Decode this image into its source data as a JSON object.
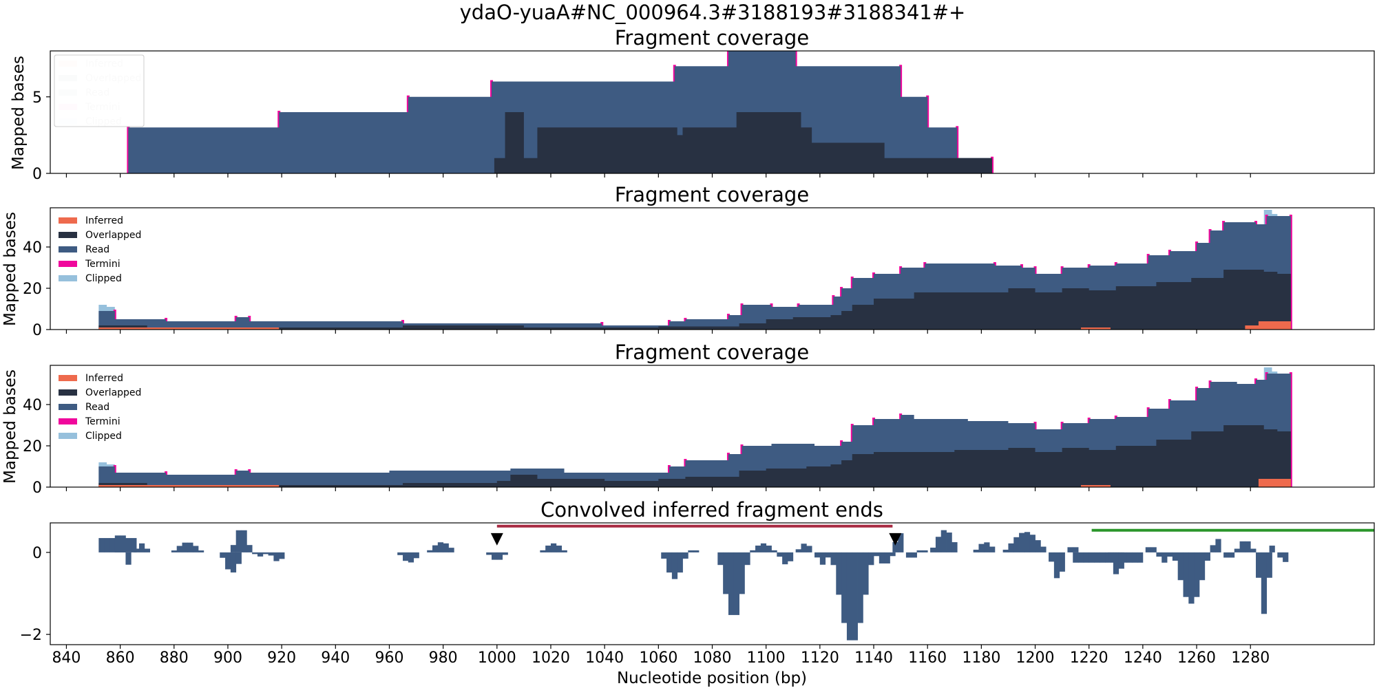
{
  "suptitle": "ydaO-yuaA#NC_000964.3#3188193#3188341#+",
  "colors": {
    "inferred": "#ee6a4d",
    "overlapped": "#283142",
    "read": "#3e5b82",
    "termini": "#f0079c",
    "clipped": "#96c0dc",
    "conv": "#3e5b82",
    "red_bar": "#a82a42",
    "green_bar": "#2a962a",
    "marker": "#000000"
  },
  "xaxis": {
    "label": "Nucleotide position (bp)",
    "xlim": [
      834,
      1326
    ],
    "ticks": [
      840,
      860,
      880,
      900,
      920,
      940,
      960,
      980,
      1000,
      1020,
      1040,
      1060,
      1080,
      1100,
      1120,
      1140,
      1160,
      1180,
      1200,
      1220,
      1240,
      1260,
      1280
    ]
  },
  "legend": [
    "Inferred",
    "Overlapped",
    "Read",
    "Termini",
    "Clipped"
  ],
  "chart_data": [
    {
      "type": "area",
      "title": "Fragment coverage",
      "ylabel": "Mapped bases",
      "ylim": [
        0,
        8
      ],
      "yticks": [
        0,
        5
      ],
      "legend_position": "upper-left",
      "total": [
        [
          863,
          3
        ],
        [
          919,
          4
        ],
        [
          967,
          5
        ],
        [
          998,
          6
        ],
        [
          1066,
          7
        ],
        [
          1086,
          8
        ],
        [
          1111,
          7
        ],
        [
          1150,
          5
        ],
        [
          1160,
          3
        ],
        [
          1171,
          1
        ],
        [
          1184,
          0
        ]
      ],
      "overlapped": [
        [
          999,
          1
        ],
        [
          1003,
          4
        ],
        [
          1010,
          1
        ],
        [
          1015,
          3
        ],
        [
          1067,
          2.5
        ],
        [
          1069,
          3
        ],
        [
          1089,
          4
        ],
        [
          1113,
          3
        ],
        [
          1117,
          2
        ],
        [
          1144,
          1
        ],
        [
          1184,
          0
        ]
      ],
      "inferred": [],
      "clipped": [],
      "termini_x": [
        863,
        919,
        967,
        998,
        1066,
        1086,
        1111,
        1150,
        1160,
        1171,
        1184
      ]
    },
    {
      "type": "area",
      "title": "Fragment coverage",
      "ylabel": "Mapped bases",
      "ylim": [
        0,
        59
      ],
      "yticks": [
        0,
        20,
        40
      ],
      "legend_position": "upper-left",
      "total": [
        [
          852,
          9
        ],
        [
          858,
          5
        ],
        [
          877,
          4
        ],
        [
          903,
          6
        ],
        [
          908,
          4
        ],
        [
          965,
          3
        ],
        [
          1039,
          2
        ],
        [
          1064,
          4
        ],
        [
          1070,
          5
        ],
        [
          1086,
          7
        ],
        [
          1091,
          12
        ],
        [
          1102,
          11
        ],
        [
          1112,
          12
        ],
        [
          1125,
          16
        ],
        [
          1128,
          20
        ],
        [
          1132,
          25
        ],
        [
          1140,
          27
        ],
        [
          1150,
          30
        ],
        [
          1159,
          32
        ],
        [
          1185,
          31
        ],
        [
          1195,
          30
        ],
        [
          1200,
          27
        ],
        [
          1210,
          30
        ],
        [
          1220,
          31
        ],
        [
          1230,
          32
        ],
        [
          1242,
          36
        ],
        [
          1250,
          38
        ],
        [
          1260,
          42
        ],
        [
          1265,
          48
        ],
        [
          1270,
          52
        ],
        [
          1282,
          51
        ],
        [
          1286,
          55
        ],
        [
          1295,
          0
        ]
      ],
      "overlapped": [
        [
          852,
          2
        ],
        [
          870,
          1
        ],
        [
          915,
          1
        ],
        [
          965,
          2
        ],
        [
          1010,
          1
        ],
        [
          1040,
          1
        ],
        [
          1060,
          1.5
        ],
        [
          1090,
          3
        ],
        [
          1100,
          5
        ],
        [
          1110,
          6
        ],
        [
          1124,
          7
        ],
        [
          1128,
          9
        ],
        [
          1132,
          12
        ],
        [
          1140,
          15
        ],
        [
          1155,
          18
        ],
        [
          1190,
          20
        ],
        [
          1200,
          18
        ],
        [
          1210,
          20
        ],
        [
          1220,
          19
        ],
        [
          1230,
          21
        ],
        [
          1245,
          23
        ],
        [
          1258,
          25
        ],
        [
          1270,
          29
        ],
        [
          1285,
          28
        ],
        [
          1290,
          27
        ],
        [
          1295,
          0
        ]
      ],
      "inferred": [
        [
          852,
          1
        ],
        [
          919,
          0
        ],
        [
          1217,
          1
        ],
        [
          1228,
          0
        ],
        [
          1278,
          2
        ],
        [
          1283,
          4
        ],
        [
          1295,
          0
        ]
      ],
      "clipped": [
        [
          852,
          12
        ],
        [
          855,
          11
        ],
        [
          858,
          0
        ],
        [
          1285,
          58
        ],
        [
          1288,
          56
        ],
        [
          1290,
          0
        ]
      ],
      "termini_x": [
        858,
        877,
        903,
        908,
        965,
        1039,
        1064,
        1070,
        1086,
        1091,
        1102,
        1112,
        1125,
        1128,
        1132,
        1140,
        1150,
        1159,
        1185,
        1195,
        1200,
        1210,
        1220,
        1230,
        1242,
        1250,
        1260,
        1265,
        1270,
        1282,
        1286,
        1295
      ]
    },
    {
      "type": "area",
      "title": "Fragment coverage",
      "ylabel": "Mapped bases",
      "ylim": [
        0,
        59
      ],
      "yticks": [
        0,
        20,
        40
      ],
      "legend_position": "upper-left",
      "total": [
        [
          852,
          10
        ],
        [
          858,
          7
        ],
        [
          877,
          6
        ],
        [
          903,
          8
        ],
        [
          908,
          7
        ],
        [
          960,
          8
        ],
        [
          1005,
          9
        ],
        [
          1025,
          7
        ],
        [
          1064,
          10
        ],
        [
          1070,
          13
        ],
        [
          1086,
          16
        ],
        [
          1091,
          20
        ],
        [
          1102,
          21
        ],
        [
          1118,
          20
        ],
        [
          1125,
          20
        ],
        [
          1128,
          22
        ],
        [
          1132,
          30
        ],
        [
          1140,
          33
        ],
        [
          1150,
          35
        ],
        [
          1155,
          33
        ],
        [
          1175,
          32
        ],
        [
          1190,
          31
        ],
        [
          1200,
          28
        ],
        [
          1210,
          31
        ],
        [
          1220,
          33
        ],
        [
          1230,
          34
        ],
        [
          1242,
          38
        ],
        [
          1250,
          42
        ],
        [
          1260,
          48
        ],
        [
          1265,
          51
        ],
        [
          1275,
          50
        ],
        [
          1282,
          52
        ],
        [
          1286,
          55
        ],
        [
          1295,
          0
        ]
      ],
      "overlapped": [
        [
          852,
          2
        ],
        [
          870,
          1
        ],
        [
          915,
          1
        ],
        [
          965,
          2
        ],
        [
          1000,
          3
        ],
        [
          1005,
          6
        ],
        [
          1015,
          4
        ],
        [
          1040,
          3
        ],
        [
          1060,
          4
        ],
        [
          1070,
          5
        ],
        [
          1090,
          8
        ],
        [
          1100,
          9
        ],
        [
          1115,
          10
        ],
        [
          1124,
          11
        ],
        [
          1128,
          13
        ],
        [
          1132,
          16
        ],
        [
          1140,
          17
        ],
        [
          1170,
          18
        ],
        [
          1190,
          19
        ],
        [
          1200,
          17
        ],
        [
          1210,
          19
        ],
        [
          1220,
          18
        ],
        [
          1230,
          20
        ],
        [
          1245,
          23
        ],
        [
          1258,
          27
        ],
        [
          1270,
          30
        ],
        [
          1285,
          28
        ],
        [
          1290,
          27
        ],
        [
          1295,
          0
        ]
      ],
      "inferred": [
        [
          852,
          1
        ],
        [
          919,
          0
        ],
        [
          1217,
          1
        ],
        [
          1228,
          0
        ],
        [
          1283,
          4
        ],
        [
          1295,
          0
        ]
      ],
      "clipped": [
        [
          852,
          12
        ],
        [
          855,
          11
        ],
        [
          858,
          0
        ],
        [
          1285,
          58
        ],
        [
          1288,
          56
        ],
        [
          1290,
          0
        ]
      ],
      "termini_x": [
        858,
        877,
        903,
        908,
        1064,
        1070,
        1086,
        1091,
        1128,
        1132,
        1140,
        1150,
        1200,
        1210,
        1220,
        1230,
        1242,
        1250,
        1260,
        1265,
        1282,
        1286,
        1295
      ]
    },
    {
      "type": "bar",
      "title": "Convolved inferred fragment ends",
      "ylabel": "",
      "ylim": [
        -2.25,
        0.72
      ],
      "yticks": [
        0,
        -2
      ],
      "segments": [
        {
          "start": 852,
          "end": 865,
          "shape": "flat",
          "peak": 0.35
        },
        {
          "start": 858,
          "end": 862,
          "shape": "bump",
          "peak": 0.65
        },
        {
          "start": 862,
          "end": 864,
          "shape": "bump",
          "peak": -0.3
        },
        {
          "start": 865,
          "end": 871,
          "shape": "bump",
          "peak": 0.22
        },
        {
          "start": 879,
          "end": 891,
          "shape": "bump",
          "peak": 0.25
        },
        {
          "start": 897,
          "end": 906,
          "shape": "bump",
          "peak": -0.5
        },
        {
          "start": 901,
          "end": 909,
          "shape": "bump",
          "peak": 0.6
        },
        {
          "start": 909,
          "end": 915,
          "shape": "bump",
          "peak": -0.1
        },
        {
          "start": 915,
          "end": 922,
          "shape": "bump",
          "peak": -0.22
        },
        {
          "start": 963,
          "end": 972,
          "shape": "bump",
          "peak": -0.25
        },
        {
          "start": 974,
          "end": 985,
          "shape": "bump",
          "peak": 0.25
        },
        {
          "start": 996,
          "end": 1004,
          "shape": "bump",
          "peak": -0.2
        },
        {
          "start": 1016,
          "end": 1026,
          "shape": "bump",
          "peak": 0.22
        },
        {
          "start": 1061,
          "end": 1071,
          "shape": "bump",
          "peak": -0.65
        },
        {
          "start": 1071,
          "end": 1074,
          "shape": "flat",
          "peak": 0.05
        },
        {
          "start": 1082,
          "end": 1094,
          "shape": "bump",
          "peak": -1.6
        },
        {
          "start": 1094,
          "end": 1104,
          "shape": "bump",
          "peak": 0.22
        },
        {
          "start": 1104,
          "end": 1111,
          "shape": "bump",
          "peak": -0.3
        },
        {
          "start": 1111,
          "end": 1118,
          "shape": "bump",
          "peak": 0.22
        },
        {
          "start": 1118,
          "end": 1124,
          "shape": "bump",
          "peak": -0.3
        },
        {
          "start": 1124,
          "end": 1140,
          "shape": "bump",
          "peak": -2.2
        },
        {
          "start": 1140,
          "end": 1148,
          "shape": "bump",
          "peak": -0.3
        },
        {
          "start": 1147,
          "end": 1152,
          "shape": "bump",
          "peak": 0.5
        },
        {
          "start": 1152,
          "end": 1156,
          "shape": "bump",
          "peak": -0.2
        },
        {
          "start": 1156,
          "end": 1160,
          "shape": "flat",
          "peak": 0.05
        },
        {
          "start": 1161,
          "end": 1172,
          "shape": "bump",
          "peak": 0.55
        },
        {
          "start": 1177,
          "end": 1186,
          "shape": "bump",
          "peak": 0.25
        },
        {
          "start": 1188,
          "end": 1205,
          "shape": "bump",
          "peak": 0.5
        },
        {
          "start": 1205,
          "end": 1212,
          "shape": "bump",
          "peak": -0.65
        },
        {
          "start": 1212,
          "end": 1216,
          "shape": "bump",
          "peak": 0.2
        },
        {
          "start": 1214,
          "end": 1240,
          "shape": "flat",
          "peak": -0.25
        },
        {
          "start": 1227,
          "end": 1234,
          "shape": "bump",
          "peak": -0.55
        },
        {
          "start": 1241,
          "end": 1245,
          "shape": "bump",
          "peak": 0.2
        },
        {
          "start": 1245,
          "end": 1251,
          "shape": "bump",
          "peak": -0.25
        },
        {
          "start": 1251,
          "end": 1265,
          "shape": "bump",
          "peak": -1.25
        },
        {
          "start": 1265,
          "end": 1270,
          "shape": "bump",
          "peak": 0.35
        },
        {
          "start": 1270,
          "end": 1274,
          "shape": "bump",
          "peak": -0.2
        },
        {
          "start": 1274,
          "end": 1282,
          "shape": "bump",
          "peak": 0.3
        },
        {
          "start": 1282,
          "end": 1288,
          "shape": "bump",
          "peak": -1.5
        },
        {
          "start": 1287,
          "end": 1290,
          "shape": "bump",
          "peak": 0.2
        },
        {
          "start": 1290,
          "end": 1295,
          "shape": "bump",
          "peak": -0.25
        }
      ],
      "markers": [
        {
          "x": 1000,
          "y": 0.32
        },
        {
          "x": 1148,
          "y": 0.32
        }
      ],
      "red_bar": {
        "start": 1000,
        "end": 1147,
        "y": 0.64
      },
      "green_bar": {
        "start": 1221,
        "end": 1326,
        "y": 0.54
      }
    }
  ]
}
